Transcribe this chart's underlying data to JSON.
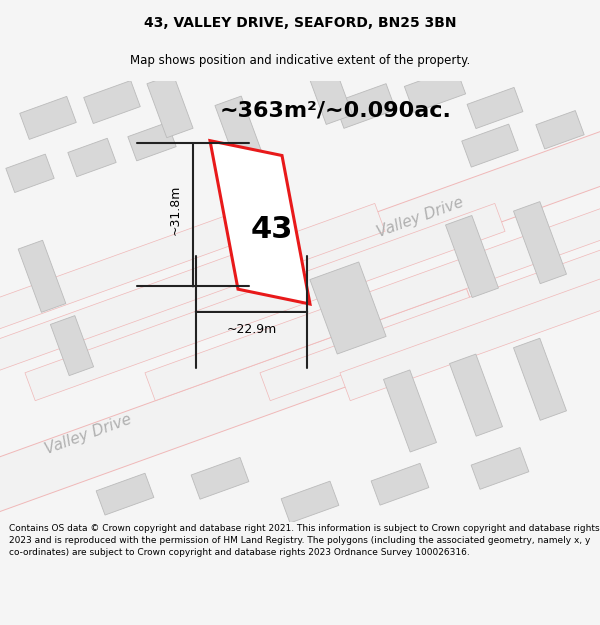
{
  "title": "43, VALLEY DRIVE, SEAFORD, BN25 3BN",
  "subtitle": "Map shows position and indicative extent of the property.",
  "area_text": "~363m²/~0.090ac.",
  "number_label": "43",
  "dim_height": "~31.8m",
  "dim_width": "~22.9m",
  "road_label_1": "Valley Drive",
  "road_label_2": "Valley Drive",
  "footer_text": "Contains OS data © Crown copyright and database right 2021. This information is subject to Crown copyright and database rights 2023 and is reproduced with the permission of HM Land Registry. The polygons (including the associated geometry, namely x, y co-ordinates) are subject to Crown copyright and database rights 2023 Ordnance Survey 100026316.",
  "bg_color": "#f5f5f5",
  "map_bg": "#f7f7f7",
  "red_color": "#e8191a",
  "light_red": "#f0b8b8",
  "gray_building": "#d8d8d8",
  "gray_building_edge": "#bbbbbb",
  "dim_line_color": "#222222",
  "text_color": "#000000",
  "road_text_color": "#b0b0b0",
  "title_fontsize": 10,
  "subtitle_fontsize": 8.5,
  "area_fontsize": 16,
  "label_fontsize": 22,
  "dim_fontsize": 9,
  "road_fontsize": 11,
  "footer_fontsize": 6.5
}
